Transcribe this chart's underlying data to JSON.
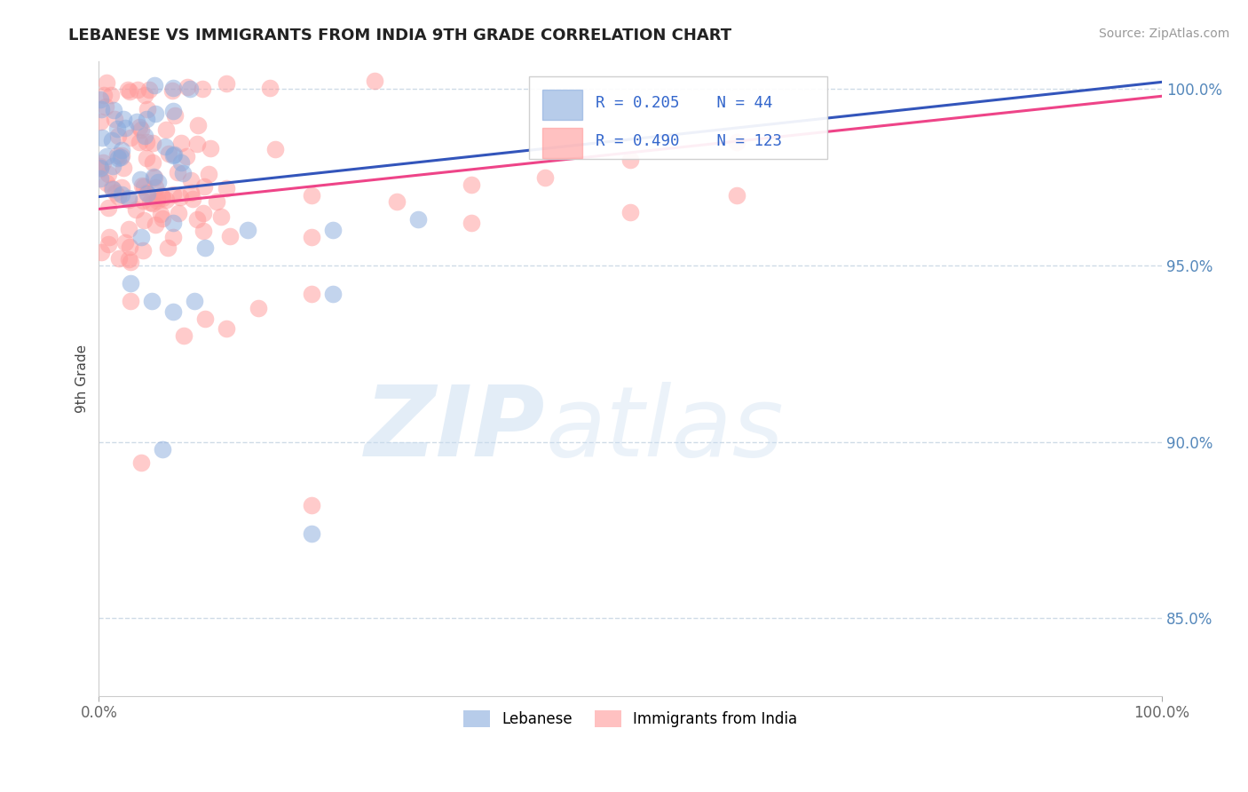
{
  "title": "LEBANESE VS IMMIGRANTS FROM INDIA 9TH GRADE CORRELATION CHART",
  "source": "Source: ZipAtlas.com",
  "ylabel": "9th Grade",
  "xlim": [
    0.0,
    1.0
  ],
  "ylim": [
    0.828,
    1.008
  ],
  "yticks": [
    0.85,
    0.9,
    0.95,
    1.0
  ],
  "ytick_labels": [
    "85.0%",
    "90.0%",
    "95.0%",
    "100.0%"
  ],
  "blue_R": 0.205,
  "blue_N": 44,
  "pink_R": 0.49,
  "pink_N": 123,
  "blue_color": "#88AADD",
  "pink_color": "#FF9999",
  "blue_line_color": "#3355BB",
  "pink_line_color": "#EE4488",
  "legend_labels": [
    "Lebanese",
    "Immigrants from India"
  ],
  "background_color": "#FFFFFF",
  "legend_text_color": "#3366CC",
  "title_color": "#222222",
  "source_color": "#999999",
  "ylabel_color": "#444444",
  "grid_color": "#BBCCDD",
  "tick_color": "#5588BB"
}
